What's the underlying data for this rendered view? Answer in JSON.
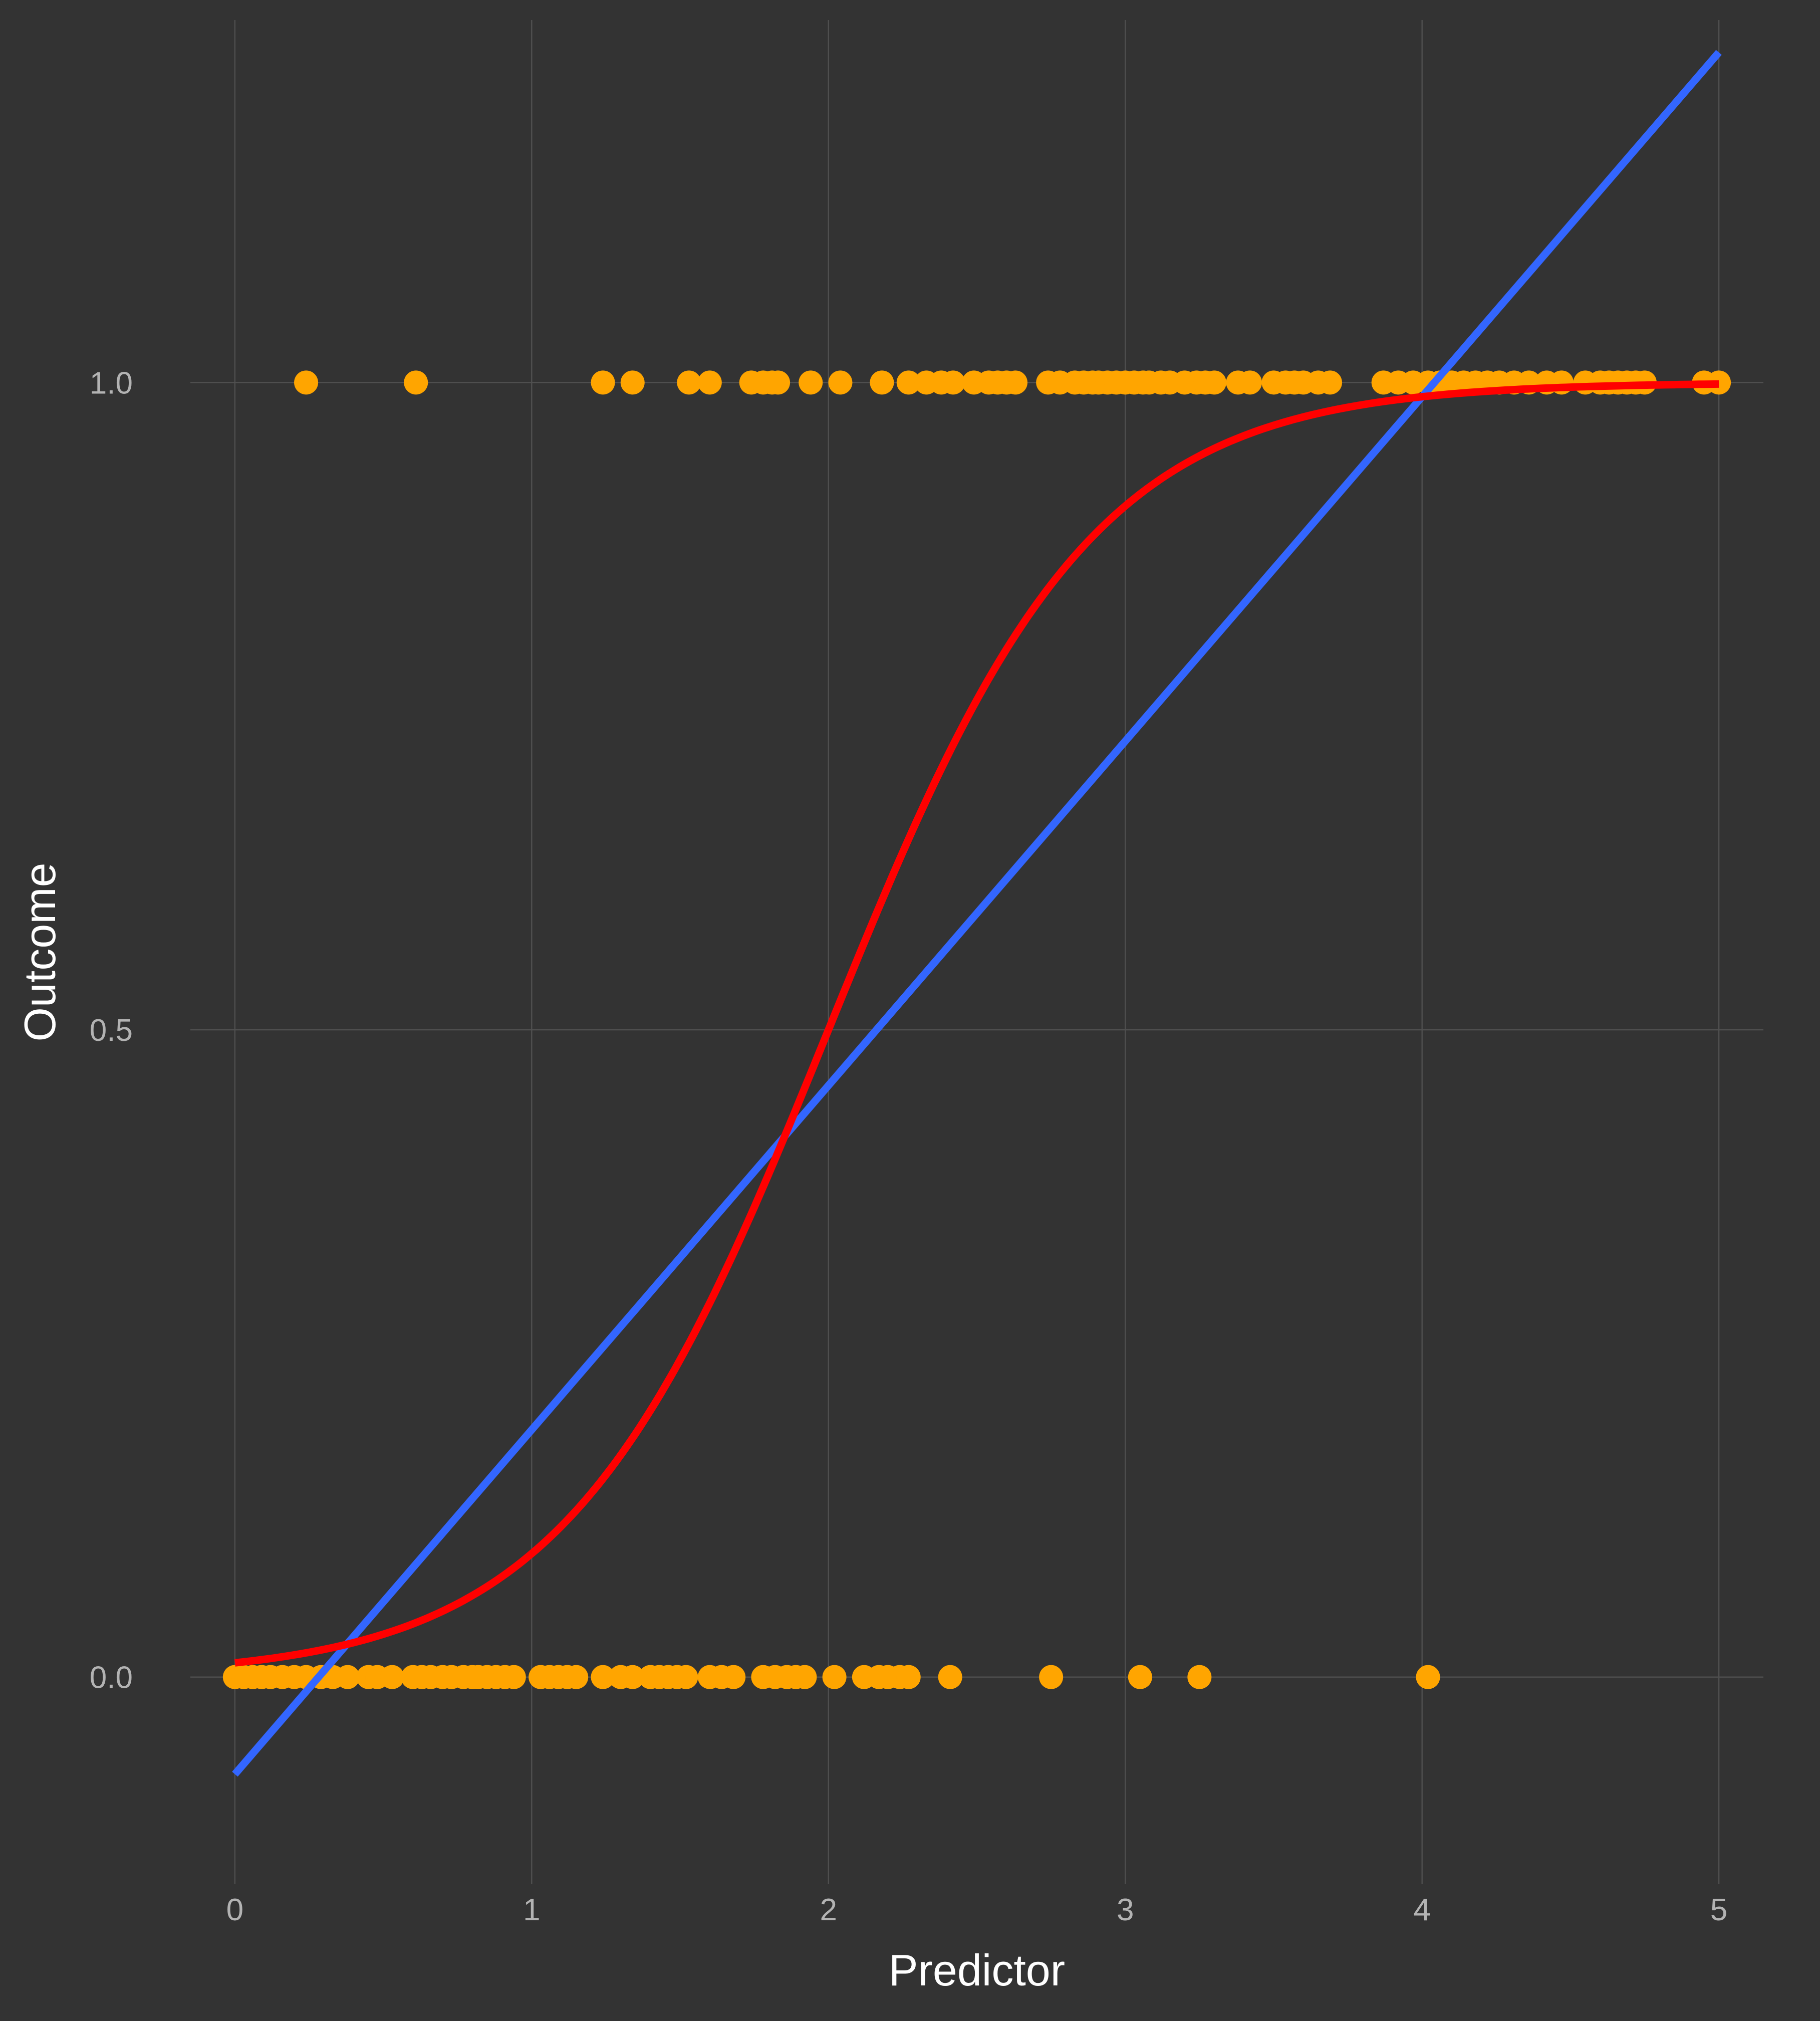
{
  "chart_data": {
    "type": "scatter",
    "title": "",
    "xlabel": "Predictor",
    "ylabel": "Outcome",
    "xlim": [
      -0.15,
      5.15
    ],
    "ylim": [
      -0.16,
      1.28
    ],
    "x_ticks": [
      {
        "value": 0,
        "label": "0"
      },
      {
        "value": 1,
        "label": "1"
      },
      {
        "value": 2,
        "label": "2"
      },
      {
        "value": 3,
        "label": "3"
      },
      {
        "value": 4,
        "label": "4"
      },
      {
        "value": 5,
        "label": "5"
      }
    ],
    "y_ticks": [
      {
        "value": 0,
        "label": "0.0"
      },
      {
        "value": 0.5,
        "label": "0.5"
      },
      {
        "value": 1,
        "label": "1.0"
      }
    ],
    "grid": true,
    "colors": {
      "background": "#333333",
      "points": "#FFA500",
      "linear_fit": "#3366FF",
      "logistic_fit": "#FF0000",
      "grid": "#505050",
      "tick_text": "#B3B3B3",
      "axis_title_text": "#FFFFFF"
    },
    "points_y0": [
      0.0,
      0.03,
      0.06,
      0.09,
      0.12,
      0.16,
      0.2,
      0.24,
      0.29,
      0.33,
      0.38,
      0.45,
      0.48,
      0.53,
      0.6,
      0.63,
      0.66,
      0.7,
      0.73,
      0.77,
      0.8,
      0.82,
      0.85,
      0.88,
      0.91,
      0.94,
      1.03,
      1.06,
      1.09,
      1.12,
      1.15,
      1.24,
      1.3,
      1.34,
      1.4,
      1.43,
      1.46,
      1.49,
      1.52,
      1.6,
      1.64,
      1.68,
      1.78,
      1.82,
      1.86,
      1.89,
      1.92,
      2.02,
      2.12,
      2.17,
      2.2,
      2.24,
      2.27,
      2.41,
      2.75,
      3.05,
      3.25,
      4.02
    ],
    "points_y1": [
      0.24,
      0.61,
      1.24,
      1.34,
      1.53,
      1.6,
      1.74,
      1.78,
      1.81,
      1.83,
      1.94,
      2.04,
      2.18,
      2.27,
      2.33,
      2.38,
      2.42,
      2.49,
      2.54,
      2.57,
      2.6,
      2.63,
      2.74,
      2.78,
      2.83,
      2.86,
      2.89,
      2.91,
      2.94,
      2.97,
      3.0,
      3.03,
      3.06,
      3.08,
      3.12,
      3.15,
      3.2,
      3.24,
      3.27,
      3.3,
      3.38,
      3.42,
      3.5,
      3.54,
      3.57,
      3.6,
      3.65,
      3.69,
      3.87,
      3.92,
      3.97,
      4.02,
      4.06,
      4.1,
      4.14,
      4.18,
      4.22,
      4.26,
      4.31,
      4.36,
      4.42,
      4.47,
      4.55,
      4.6,
      4.63,
      4.66,
      4.69,
      4.72,
      4.75,
      4.95,
      5.0
    ],
    "series": [
      {
        "kind": "linear",
        "x": [
          0,
          5
        ],
        "y": [
          -0.075,
          1.255
        ]
      },
      {
        "kind": "logistic",
        "x0": 2.0,
        "k": 2.25,
        "x": [
          0,
          5
        ]
      }
    ]
  }
}
